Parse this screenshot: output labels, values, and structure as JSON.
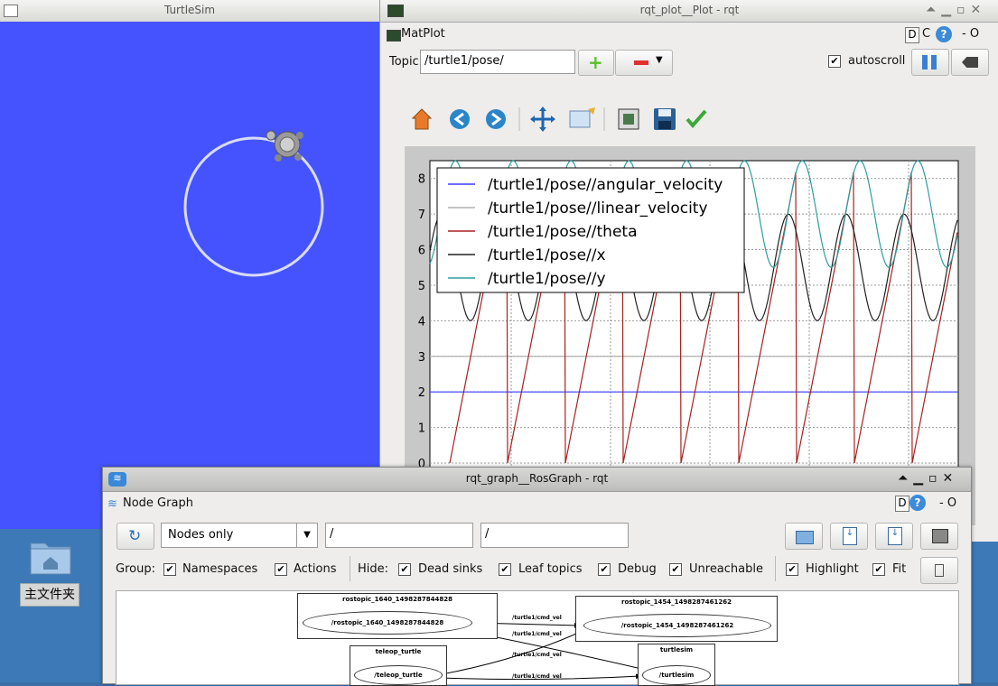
{
  "desktop": {
    "home_label": "主文件夹"
  },
  "turtlesim": {
    "title": "TurtleSim",
    "bg_color": "#4553fe"
  },
  "plot_window": {
    "title": "rqt_plot__Plot - rqt",
    "plugin_label": "MatPlot",
    "dc_label": "D",
    "c_label": "C",
    "dash_o": "- O",
    "topic_label": "Topic",
    "topic_value": "/turtle1/pose/",
    "autoscroll_label": "autoscroll"
  },
  "chart_data": {
    "type": "line",
    "ylim": [
      0,
      8.5
    ],
    "yticks": [
      "0",
      "1",
      "2",
      "3",
      "4",
      "5",
      "6",
      "7",
      "8"
    ],
    "legend_position": "top-left",
    "grid": true,
    "series": [
      {
        "name": "/turtle1/pose//angular_velocity",
        "color": "#3b3bff",
        "values": [
          2,
          2
        ]
      },
      {
        "name": "/turtle1/pose//linear_velocity",
        "color": "#b0b0b0",
        "values": [
          3,
          3
        ]
      },
      {
        "name": "/turtle1/pose//theta",
        "color": "#a82020",
        "values": [
          0,
          6.28
        ]
      },
      {
        "name": "/turtle1/pose//x",
        "color": "#222222",
        "values": [
          4,
          7
        ]
      },
      {
        "name": "/turtle1/pose//y",
        "color": "#2e9e9e",
        "values": [
          5.5,
          8.5
        ]
      }
    ]
  },
  "graph_window": {
    "title": "rqt_graph__RosGraph - rqt",
    "plugin_label": "Node Graph",
    "d_label": "D",
    "dash_o": "- O",
    "nodes_select": "Nodes only",
    "filter1": "/",
    "filter2": "/",
    "group_label": "Group:",
    "namespaces_label": "Namespaces",
    "actions_label": "Actions",
    "hide_label": "Hide:",
    "dead_sinks_label": "Dead sinks",
    "leaf_topics_label": "Leaf topics",
    "debug_label": "Debug",
    "unreachable_label": "Unreachable",
    "highlight_label": "Highlight",
    "fit_label": "Fit",
    "graph": {
      "node1_title": "rostopic_1640_1498287844828",
      "node1_name": "/rostopic_1640_1498287844828",
      "node2_title": "rostopic_1454_1498287461262",
      "node2_name": "/rostopic_1454_1498287461262",
      "node3_title": "teleop_turtle",
      "node3_name": "/teleop_turtle",
      "node4_title": "turtlesim",
      "node4_name": "/turtlesim",
      "edge1": "/turtle1/cmd_vel",
      "edge2": "/turtle1/cmd_vel",
      "edge3": "/turtle1/cmd_vel",
      "edge4": "/turtle1/cmd_vel"
    }
  }
}
